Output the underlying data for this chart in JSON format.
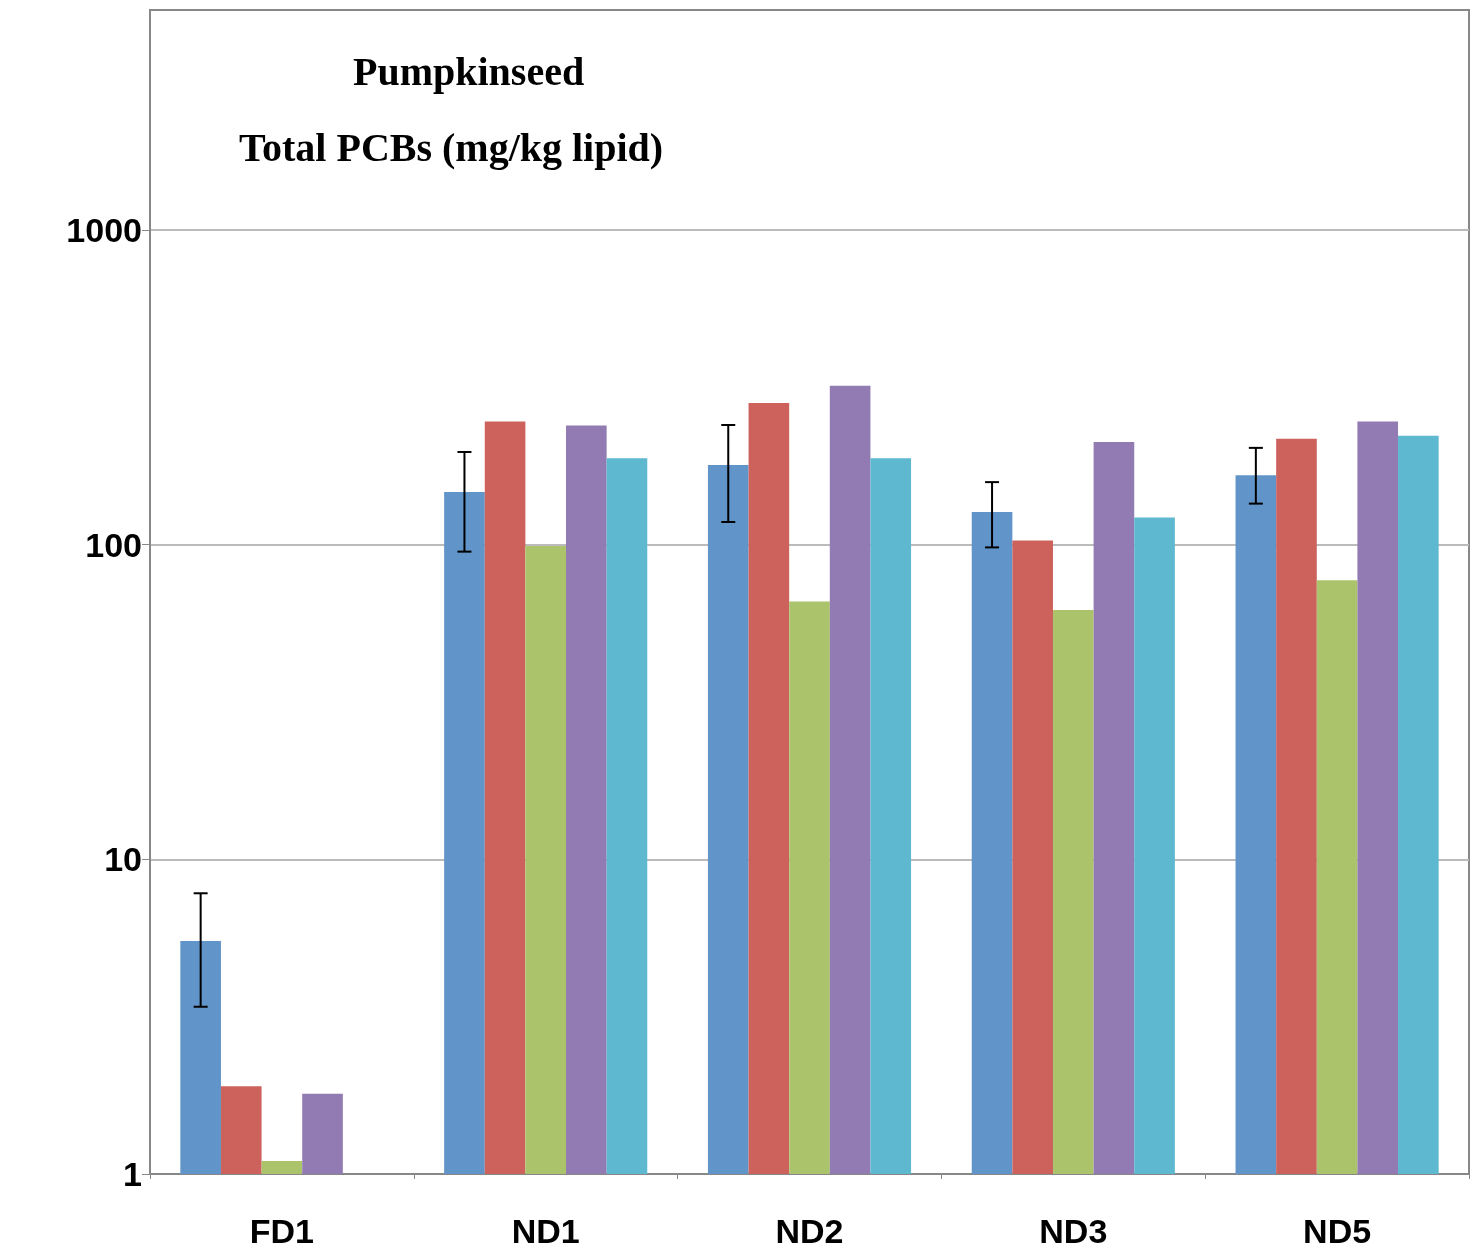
{
  "chart_data": {
    "type": "bar",
    "title": "Pumpkinseed",
    "subtitle": "Total PCBs (mg/kg lipid)",
    "log": true,
    "categories": [
      "FD1",
      "ND1",
      "ND2",
      "ND3",
      "ND5"
    ],
    "series": [
      {
        "color": "#6194c8",
        "values": [
          5.5,
          147,
          179,
          127,
          166
        ],
        "errors": [
          [
            3.4,
            7.8
          ],
          [
            95,
            197
          ],
          [
            118,
            240
          ],
          [
            98,
            158
          ],
          [
            135,
            203
          ]
        ]
      },
      {
        "color": "#cd625d",
        "values": [
          1.9,
          246,
          282,
          103,
          217
        ]
      },
      {
        "color": "#abc46c",
        "values": [
          1.1,
          99,
          66,
          62,
          77
        ]
      },
      {
        "color": "#927bb2",
        "values": [
          1.8,
          239,
          320,
          212,
          246
        ]
      },
      {
        "color": "#5db8d0",
        "values": [
          null,
          188,
          188,
          122,
          222
        ]
      }
    ],
    "ylim": [
      1,
      5000
    ],
    "yticks": [
      1,
      10,
      100,
      1000
    ],
    "grid": "y"
  }
}
